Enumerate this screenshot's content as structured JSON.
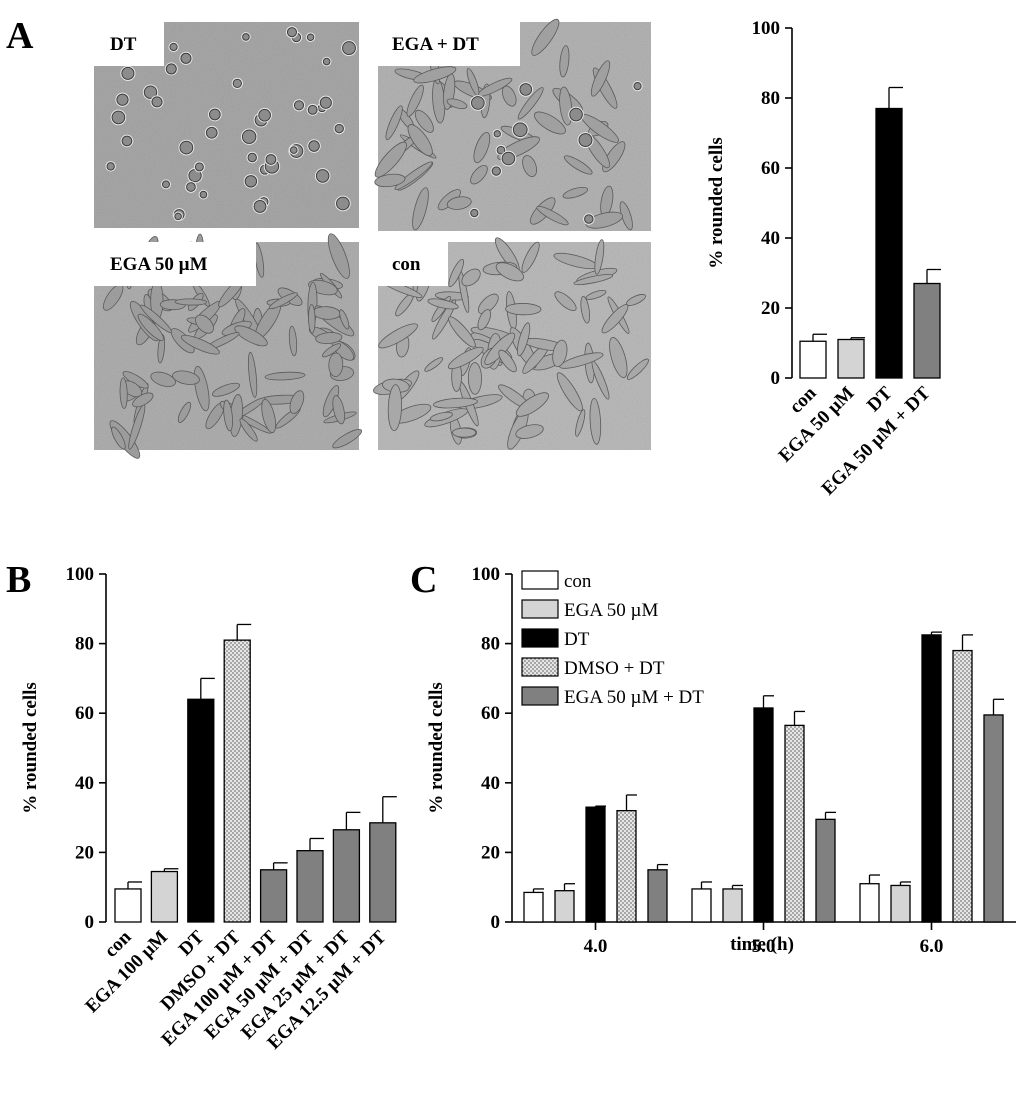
{
  "panels": {
    "a": "A",
    "b": "B",
    "c": "C"
  },
  "micrographs": [
    {
      "label": "DT"
    },
    {
      "label": "EGA + DT"
    },
    {
      "label": "EGA 50 µM"
    },
    {
      "label": "con"
    }
  ],
  "colors": {
    "con": "#ffffff",
    "ega": "#d4d4d4",
    "dt": "#000000",
    "dmso_dt": "#d9d9d9",
    "ega_dt": "#808080",
    "micrograph_bg": "#b3b3b3",
    "cell_outline": "#555555"
  },
  "chart_data": [
    {
      "id": "A-chart",
      "type": "bar",
      "ylabel": "% rounded cells",
      "ylim": [
        0,
        100
      ],
      "yticks": [
        0,
        20,
        40,
        60,
        80,
        100
      ],
      "categories": [
        "con",
        "EGA 50 µM",
        "DT",
        "EGA 50 µM + DT"
      ],
      "values": [
        10.5,
        11,
        77,
        27
      ],
      "errors": [
        2,
        0.5,
        6,
        4
      ],
      "fill": [
        "con",
        "ega",
        "dt",
        "ega_dt"
      ]
    },
    {
      "id": "B-chart",
      "type": "bar",
      "ylabel": "% rounded cells",
      "ylim": [
        0,
        100
      ],
      "yticks": [
        0,
        20,
        40,
        60,
        80,
        100
      ],
      "categories": [
        "con",
        "EGA 100 µM",
        "DT",
        "DMSO + DT",
        "EGA 100 µM + DT",
        "EGA 50 µM + DT",
        "EGA 25 µM + DT",
        "EGA 12.5 µM + DT"
      ],
      "values": [
        9.5,
        14.5,
        64,
        81,
        15,
        20.5,
        26.5,
        28.5
      ],
      "errors": [
        2,
        0.8,
        6,
        4.5,
        2,
        3.5,
        5,
        7.5
      ],
      "fill": [
        "con",
        "ega",
        "dt",
        "dmso_dt",
        "ega_dt",
        "ega_dt",
        "ega_dt",
        "ega_dt"
      ]
    },
    {
      "id": "C-chart",
      "type": "bar",
      "ylabel": "% rounded cells",
      "xlabel": "time (h)",
      "ylim": [
        0,
        100
      ],
      "yticks": [
        0,
        20,
        40,
        60,
        80,
        100
      ],
      "categories": [
        "4.0",
        "5.0",
        "6.0"
      ],
      "series": [
        {
          "name": "con",
          "fill": "con",
          "values": [
            8.5,
            9.5,
            11
          ],
          "errors": [
            1,
            2,
            2.5
          ]
        },
        {
          "name": "EGA 50 µM",
          "fill": "ega",
          "values": [
            9,
            9.5,
            10.5
          ],
          "errors": [
            2,
            1,
            1
          ]
        },
        {
          "name": "DT",
          "fill": "dt",
          "values": [
            33,
            61.5,
            82.5
          ],
          "errors": [
            0.3,
            3.5,
            0.8
          ]
        },
        {
          "name": "DMSO + DT",
          "fill": "dmso_dt",
          "values": [
            32,
            56.5,
            78
          ],
          "errors": [
            4.5,
            4,
            4.5
          ]
        },
        {
          "name": "EGA 50 µM + DT",
          "fill": "ega_dt",
          "values": [
            15,
            29.5,
            59.5
          ],
          "errors": [
            1.5,
            2,
            4.5
          ]
        }
      ]
    }
  ]
}
